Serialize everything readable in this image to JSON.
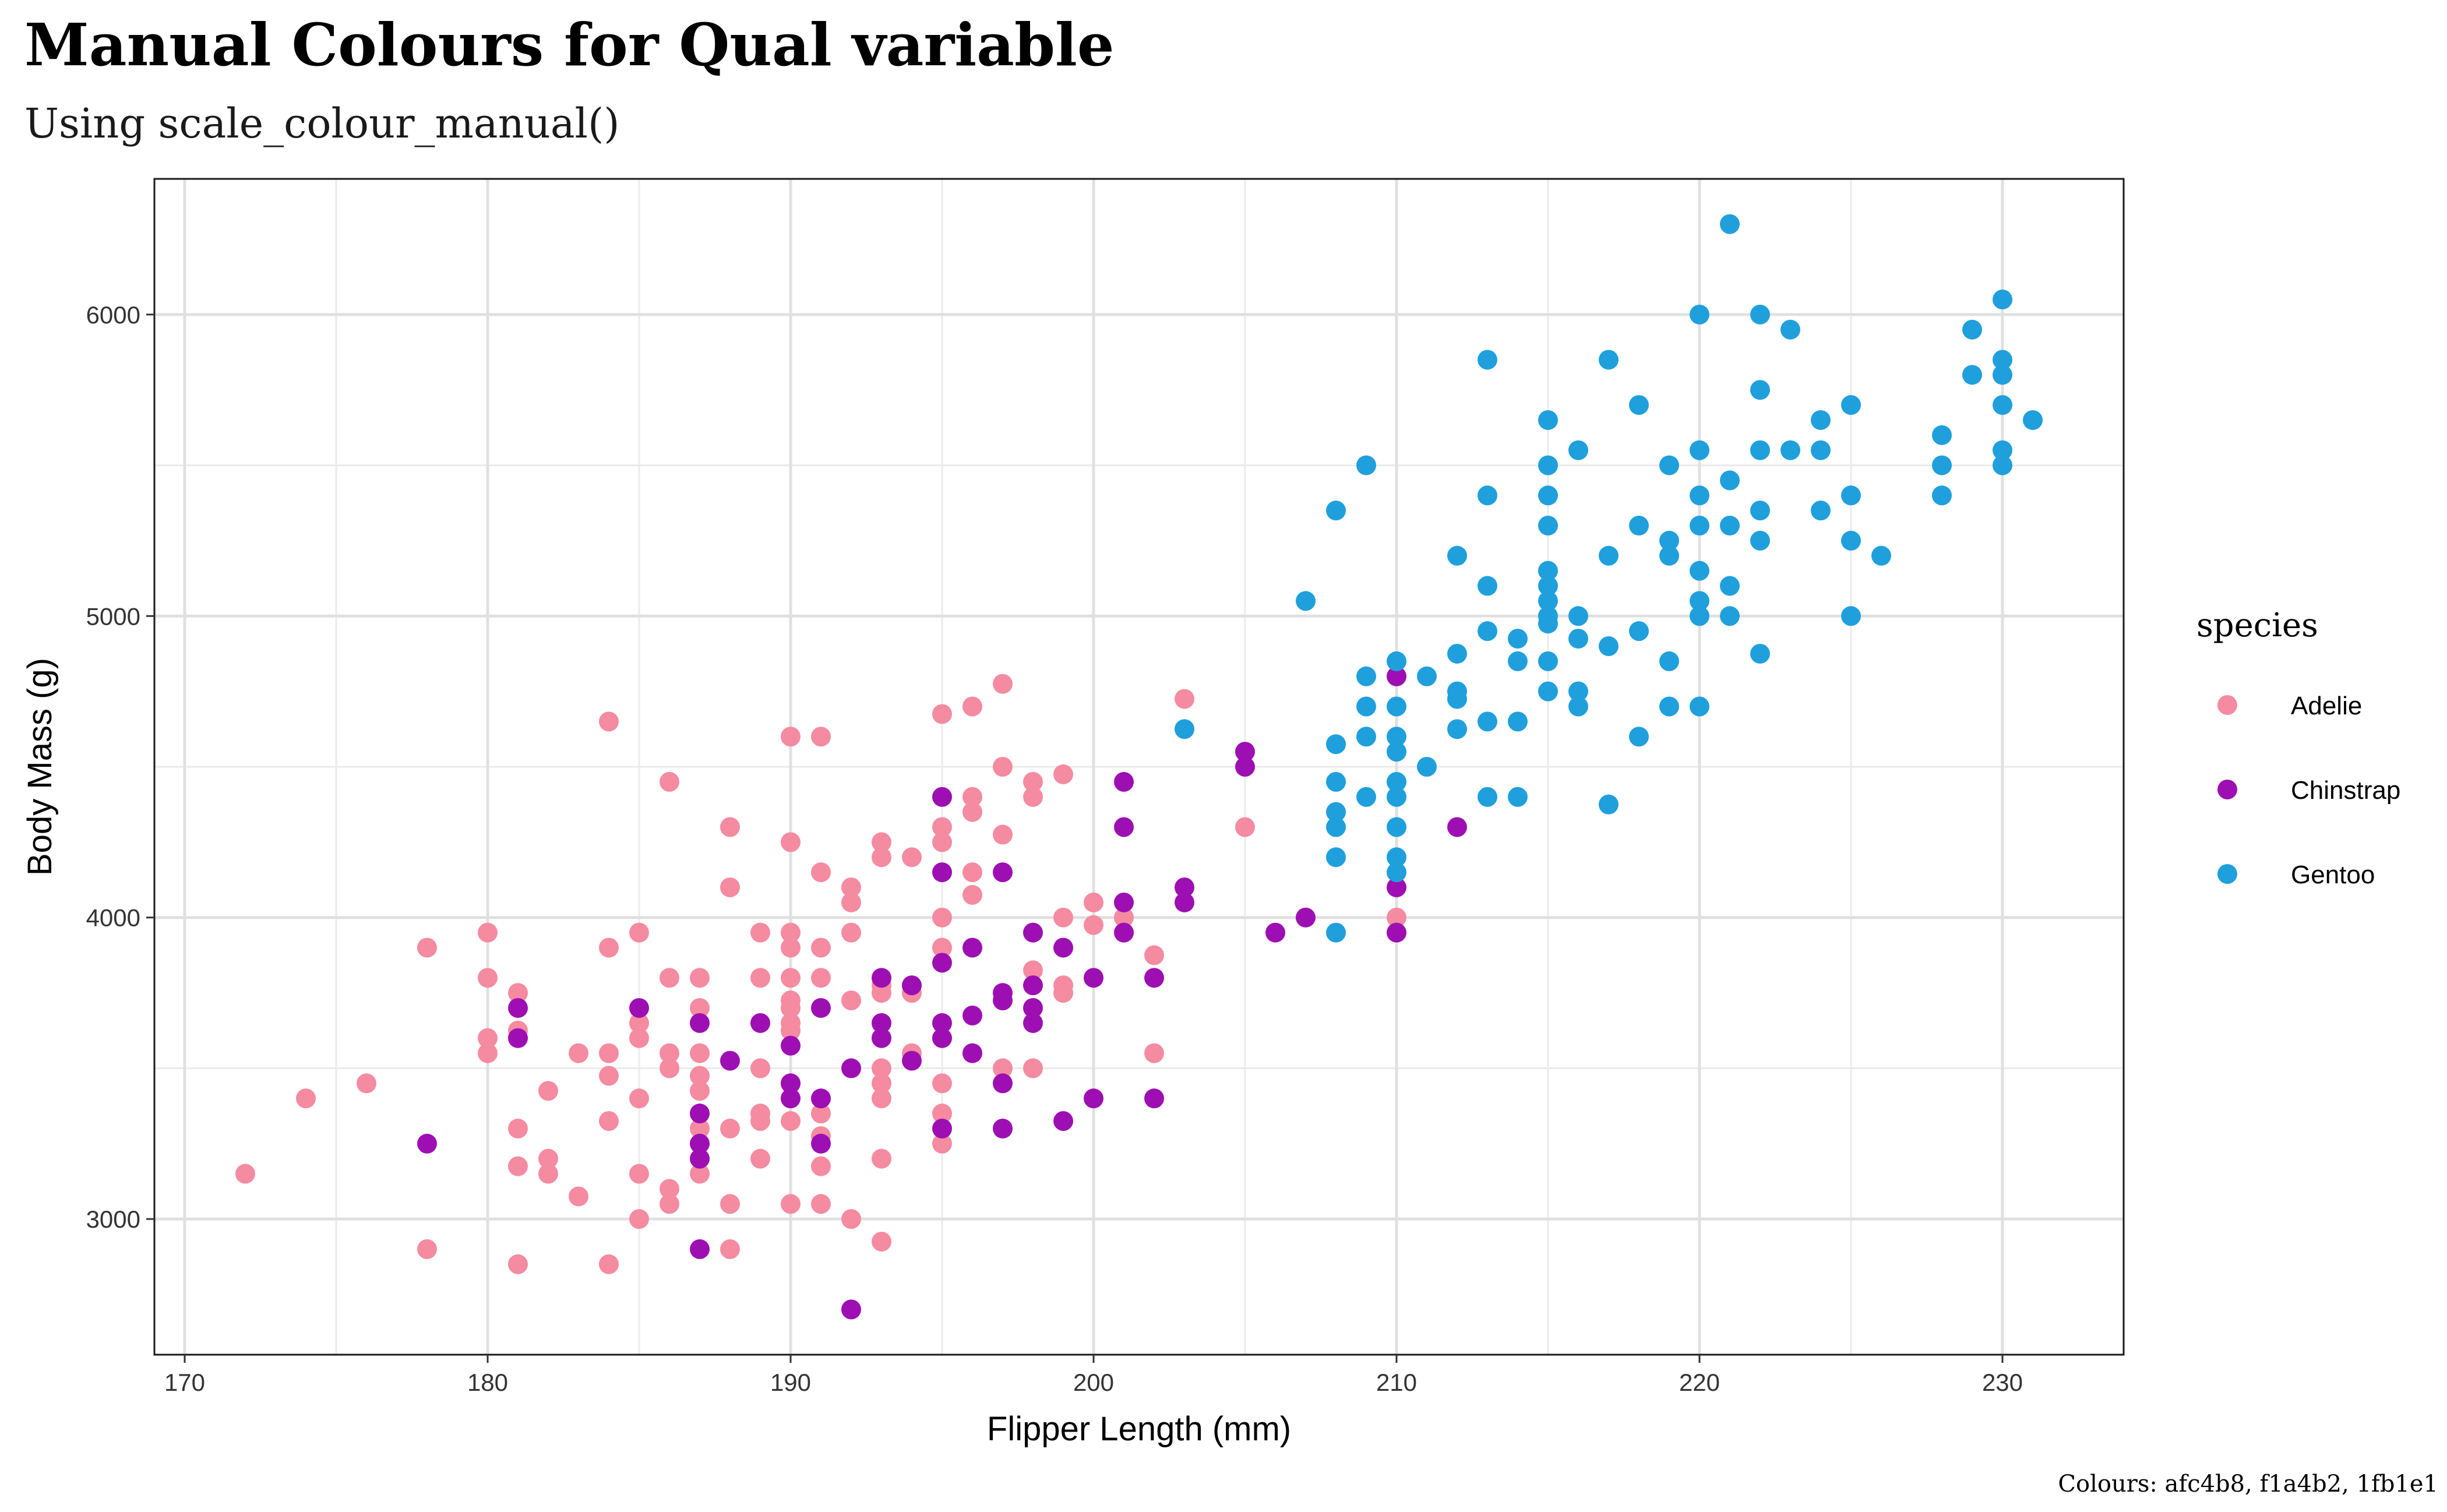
{
  "title": "Manual Colours for Qual variable",
  "subtitle": "Using scale_colour_manual()",
  "caption": "Colours: afc4b8, f1a4b2, 1fb1e1",
  "chart_data": {
    "type": "scatter",
    "xlabel": "Flipper Length (mm)",
    "ylabel": "Body Mass (g)",
    "xlim": [
      169,
      234
    ],
    "ylim": [
      2550,
      6450
    ],
    "xticks": [
      170,
      180,
      190,
      200,
      210,
      220,
      230
    ],
    "yticks": [
      3000,
      4000,
      5000,
      6000
    ],
    "xtick_labels": [
      "170",
      "180",
      "190",
      "200",
      "210",
      "220",
      "230"
    ],
    "ytick_labels": [
      "3000",
      "4000",
      "5000",
      "6000"
    ],
    "grid": true,
    "legend": {
      "title": "species",
      "position": "right"
    },
    "series": [
      {
        "name": "Adelie",
        "color": "#f48ba0",
        "points": [
          [
            172,
            3150
          ],
          [
            174,
            3400
          ],
          [
            176,
            3450
          ],
          [
            178,
            3900
          ],
          [
            178,
            2900
          ],
          [
            180,
            3950
          ],
          [
            180,
            3800
          ],
          [
            180,
            3600
          ],
          [
            180,
            3550
          ],
          [
            181,
            3750
          ],
          [
            181,
            3625
          ],
          [
            181,
            3300
          ],
          [
            181,
            3175
          ],
          [
            181,
            2850
          ],
          [
            182,
            3425
          ],
          [
            182,
            3200
          ],
          [
            182,
            3150
          ],
          [
            183,
            3550
          ],
          [
            183,
            3075
          ],
          [
            184,
            4650
          ],
          [
            184,
            3900
          ],
          [
            184,
            3550
          ],
          [
            184,
            3475
          ],
          [
            184,
            3325
          ],
          [
            184,
            2850
          ],
          [
            185,
            3950
          ],
          [
            185,
            3650
          ],
          [
            185,
            3600
          ],
          [
            185,
            3400
          ],
          [
            185,
            3150
          ],
          [
            185,
            3000
          ],
          [
            186,
            4450
          ],
          [
            186,
            3800
          ],
          [
            186,
            3550
          ],
          [
            186,
            3500
          ],
          [
            186,
            3100
          ],
          [
            186,
            3050
          ],
          [
            187,
            3800
          ],
          [
            187,
            3700
          ],
          [
            187,
            3550
          ],
          [
            187,
            3475
          ],
          [
            187,
            3425
          ],
          [
            187,
            3300
          ],
          [
            187,
            3150
          ],
          [
            188,
            4300
          ],
          [
            188,
            4100
          ],
          [
            188,
            3300
          ],
          [
            188,
            3050
          ],
          [
            188,
            2900
          ],
          [
            189,
            3950
          ],
          [
            189,
            3800
          ],
          [
            189,
            3500
          ],
          [
            189,
            3350
          ],
          [
            189,
            3325
          ],
          [
            189,
            3200
          ],
          [
            190,
            4600
          ],
          [
            190,
            4250
          ],
          [
            190,
            3950
          ],
          [
            190,
            3900
          ],
          [
            190,
            3800
          ],
          [
            190,
            3725
          ],
          [
            190,
            3700
          ],
          [
            190,
            3650
          ],
          [
            190,
            3625
          ],
          [
            190,
            3450
          ],
          [
            190,
            3325
          ],
          [
            190,
            3050
          ],
          [
            191,
            4600
          ],
          [
            191,
            4150
          ],
          [
            191,
            3900
          ],
          [
            191,
            3800
          ],
          [
            191,
            3350
          ],
          [
            191,
            3275
          ],
          [
            191,
            3175
          ],
          [
            191,
            3050
          ],
          [
            192,
            4100
          ],
          [
            192,
            4050
          ],
          [
            192,
            3950
          ],
          [
            192,
            3725
          ],
          [
            192,
            3000
          ],
          [
            193,
            4250
          ],
          [
            193,
            4200
          ],
          [
            193,
            3775
          ],
          [
            193,
            3750
          ],
          [
            193,
            3500
          ],
          [
            193,
            3450
          ],
          [
            193,
            3400
          ],
          [
            193,
            3200
          ],
          [
            193,
            2925
          ],
          [
            194,
            4200
          ],
          [
            194,
            3775
          ],
          [
            194,
            3750
          ],
          [
            194,
            3550
          ],
          [
            195,
            4675
          ],
          [
            195,
            4300
          ],
          [
            195,
            4250
          ],
          [
            195,
            4000
          ],
          [
            195,
            3900
          ],
          [
            195,
            3450
          ],
          [
            195,
            3350
          ],
          [
            195,
            3250
          ],
          [
            196,
            4700
          ],
          [
            196,
            4400
          ],
          [
            196,
            4350
          ],
          [
            196,
            4150
          ],
          [
            196,
            4075
          ],
          [
            197,
            4775
          ],
          [
            197,
            4500
          ],
          [
            197,
            4275
          ],
          [
            197,
            3500
          ],
          [
            198,
            4450
          ],
          [
            198,
            4400
          ],
          [
            198,
            3825
          ],
          [
            198,
            3500
          ],
          [
            199,
            4475
          ],
          [
            199,
            4000
          ],
          [
            199,
            3775
          ],
          [
            199,
            3750
          ],
          [
            200,
            4050
          ],
          [
            200,
            3975
          ],
          [
            201,
            4000
          ],
          [
            202,
            3875
          ],
          [
            202,
            3550
          ],
          [
            203,
            4725
          ],
          [
            205,
            4300
          ],
          [
            210,
            4000
          ]
        ]
      },
      {
        "name": "Chinstrap",
        "color": "#9d0fb2",
        "points": [
          [
            178,
            3250
          ],
          [
            181,
            3700
          ],
          [
            181,
            3600
          ],
          [
            185,
            3700
          ],
          [
            187,
            3650
          ],
          [
            187,
            3350
          ],
          [
            187,
            3250
          ],
          [
            187,
            3200
          ],
          [
            187,
            2900
          ],
          [
            188,
            3525
          ],
          [
            189,
            3650
          ],
          [
            190,
            3575
          ],
          [
            190,
            3450
          ],
          [
            190,
            3400
          ],
          [
            191,
            3700
          ],
          [
            191,
            3400
          ],
          [
            191,
            3250
          ],
          [
            192,
            3500
          ],
          [
            192,
            2700
          ],
          [
            193,
            3800
          ],
          [
            193,
            3650
          ],
          [
            193,
            3600
          ],
          [
            194,
            3775
          ],
          [
            194,
            3525
          ],
          [
            195,
            4400
          ],
          [
            195,
            4150
          ],
          [
            195,
            3850
          ],
          [
            195,
            3650
          ],
          [
            195,
            3600
          ],
          [
            195,
            3300
          ],
          [
            196,
            3900
          ],
          [
            196,
            3675
          ],
          [
            196,
            3550
          ],
          [
            197,
            4150
          ],
          [
            197,
            3750
          ],
          [
            197,
            3725
          ],
          [
            197,
            3450
          ],
          [
            197,
            3300
          ],
          [
            198,
            3950
          ],
          [
            198,
            3775
          ],
          [
            198,
            3700
          ],
          [
            198,
            3650
          ],
          [
            199,
            3900
          ],
          [
            199,
            3325
          ],
          [
            200,
            3800
          ],
          [
            200,
            3400
          ],
          [
            201,
            4450
          ],
          [
            201,
            4300
          ],
          [
            201,
            4050
          ],
          [
            201,
            3950
          ],
          [
            202,
            3800
          ],
          [
            202,
            3400
          ],
          [
            203,
            4100
          ],
          [
            203,
            4050
          ],
          [
            205,
            4550
          ],
          [
            205,
            4500
          ],
          [
            206,
            3950
          ],
          [
            207,
            4000
          ],
          [
            210,
            4800
          ],
          [
            210,
            4100
          ],
          [
            210,
            3950
          ],
          [
            212,
            4300
          ]
        ]
      },
      {
        "name": "Gentoo",
        "color": "#1fa0dc",
        "points": [
          [
            203,
            4625
          ],
          [
            207,
            5050
          ],
          [
            208,
            5350
          ],
          [
            208,
            4575
          ],
          [
            208,
            4450
          ],
          [
            208,
            4350
          ],
          [
            208,
            4300
          ],
          [
            208,
            4200
          ],
          [
            208,
            3950
          ],
          [
            209,
            5500
          ],
          [
            209,
            4800
          ],
          [
            209,
            4700
          ],
          [
            209,
            4600
          ],
          [
            209,
            4400
          ],
          [
            210,
            4850
          ],
          [
            210,
            4700
          ],
          [
            210,
            4600
          ],
          [
            210,
            4550
          ],
          [
            210,
            4450
          ],
          [
            210,
            4400
          ],
          [
            210,
            4300
          ],
          [
            210,
            4200
          ],
          [
            210,
            4150
          ],
          [
            211,
            4800
          ],
          [
            211,
            4500
          ],
          [
            212,
            5200
          ],
          [
            212,
            4875
          ],
          [
            212,
            4750
          ],
          [
            212,
            4725
          ],
          [
            212,
            4625
          ],
          [
            213,
            5850
          ],
          [
            213,
            5400
          ],
          [
            213,
            5100
          ],
          [
            213,
            4950
          ],
          [
            213,
            4650
          ],
          [
            213,
            4400
          ],
          [
            214,
            4925
          ],
          [
            214,
            4850
          ],
          [
            214,
            4650
          ],
          [
            214,
            4400
          ],
          [
            215,
            5650
          ],
          [
            215,
            5500
          ],
          [
            215,
            5400
          ],
          [
            215,
            5300
          ],
          [
            215,
            5150
          ],
          [
            215,
            5100
          ],
          [
            215,
            5050
          ],
          [
            215,
            5000
          ],
          [
            215,
            4975
          ],
          [
            215,
            4850
          ],
          [
            215,
            4750
          ],
          [
            216,
            5550
          ],
          [
            216,
            5000
          ],
          [
            216,
            4925
          ],
          [
            216,
            4750
          ],
          [
            216,
            4700
          ],
          [
            217,
            5850
          ],
          [
            217,
            5200
          ],
          [
            217,
            4900
          ],
          [
            217,
            4375
          ],
          [
            218,
            5700
          ],
          [
            218,
            5300
          ],
          [
            218,
            4950
          ],
          [
            218,
            4600
          ],
          [
            219,
            5500
          ],
          [
            219,
            5250
          ],
          [
            219,
            5200
          ],
          [
            219,
            4850
          ],
          [
            219,
            4700
          ],
          [
            220,
            6000
          ],
          [
            220,
            5550
          ],
          [
            220,
            5400
          ],
          [
            220,
            5300
          ],
          [
            220,
            5150
          ],
          [
            220,
            5050
          ],
          [
            220,
            5000
          ],
          [
            220,
            4700
          ],
          [
            221,
            6300
          ],
          [
            221,
            5450
          ],
          [
            221,
            5300
          ],
          [
            221,
            5100
          ],
          [
            221,
            5000
          ],
          [
            222,
            6000
          ],
          [
            222,
            5750
          ],
          [
            222,
            5550
          ],
          [
            222,
            5350
          ],
          [
            222,
            5250
          ],
          [
            222,
            4875
          ],
          [
            223,
            5950
          ],
          [
            223,
            5550
          ],
          [
            224,
            5650
          ],
          [
            224,
            5550
          ],
          [
            224,
            5350
          ],
          [
            225,
            5700
          ],
          [
            225,
            5400
          ],
          [
            225,
            5250
          ],
          [
            225,
            5000
          ],
          [
            226,
            5200
          ],
          [
            228,
            5600
          ],
          [
            228,
            5500
          ],
          [
            228,
            5400
          ],
          [
            229,
            5950
          ],
          [
            229,
            5800
          ],
          [
            230,
            6050
          ],
          [
            230,
            5850
          ],
          [
            230,
            5800
          ],
          [
            230,
            5700
          ],
          [
            230,
            5550
          ],
          [
            230,
            5500
          ],
          [
            231,
            5650
          ]
        ]
      }
    ]
  }
}
